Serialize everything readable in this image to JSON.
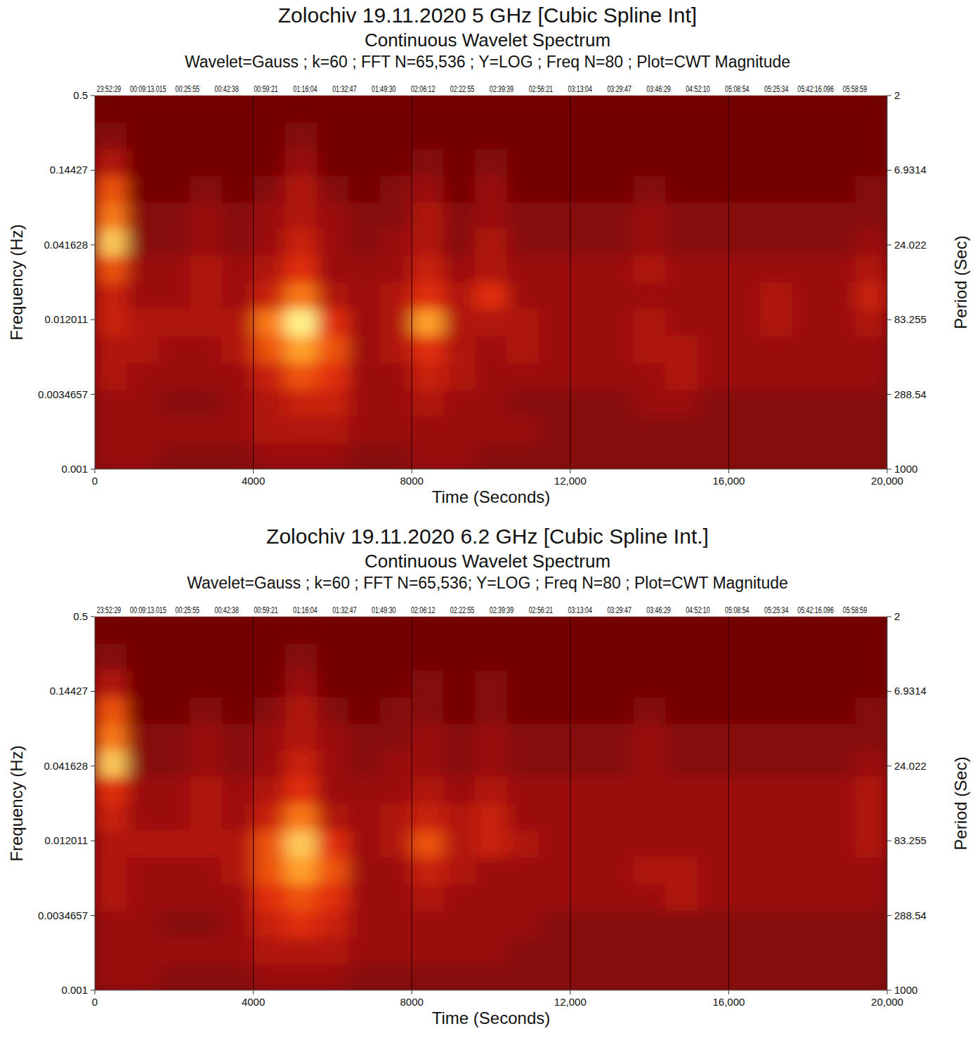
{
  "chart_data": [
    {
      "type": "heatmap",
      "title": "Zolochiv 19.11.2020 5 GHz [Cubic Spline Int]",
      "subtitle": "Continuous Wavelet Spectrum",
      "parameters": "Wavelet=Gauss ; k=60 ; FFT N=65,536 ; Y=LOG ; Freq N=80 ; Plot=CWT Magnitude",
      "xlabel": "Time (Seconds)",
      "ylabel": "Frequency (Hz)",
      "y2label": "Period (Sec)",
      "log": "y",
      "grid": true,
      "xlim": [
        0,
        20000
      ],
      "xticks": [
        0,
        4000,
        8000,
        {
          "value": 12000,
          "label": "12,000"
        },
        {
          "value": 16000,
          "label": "16,000"
        },
        {
          "value": 20000,
          "label": "20,000"
        }
      ],
      "ylim": [
        0.001,
        0.5
      ],
      "yticks": [
        0.001,
        0.0034657,
        0.012011,
        0.041628,
        0.14427,
        0.5
      ],
      "y2lim": [
        2,
        1000
      ],
      "y2ticks": [
        2,
        6.9314,
        24.022,
        83.255,
        288.54,
        1000
      ],
      "annotations": [
        {
          "x": 355,
          "text": "23:52:29"
        },
        {
          "x": 1346,
          "text": "00:09:13.015"
        },
        {
          "x": 2337,
          "text": "00:25:55"
        },
        {
          "x": 3328,
          "text": "00:42:38"
        },
        {
          "x": 4319,
          "text": "00:59:21"
        },
        {
          "x": 5310,
          "text": "01:16:04"
        },
        {
          "x": 6301,
          "text": "01:32:47"
        },
        {
          "x": 7292,
          "text": "01:49:30"
        },
        {
          "x": 8283,
          "text": "02:06:12"
        },
        {
          "x": 9274,
          "text": "02:22:55"
        },
        {
          "x": 10265,
          "text": "02:39:39"
        },
        {
          "x": 11256,
          "text": "02:56:21"
        },
        {
          "x": 12247,
          "text": "03:13:04"
        },
        {
          "x": 13238,
          "text": "03:29:47"
        },
        {
          "x": 14229,
          "text": "03:46:29"
        },
        {
          "x": 15220,
          "text": "04:52:10"
        },
        {
          "x": 16211,
          "text": "05:08:54"
        },
        {
          "x": 17202,
          "text": "05:25:34"
        },
        {
          "x": 18193,
          "text": "05:42:16.096"
        },
        {
          "x": 19184,
          "text": "05:58:59"
        }
      ],
      "zlim": [
        0,
        10
      ],
      "x_edges": [
        0,
        800,
        1600,
        2400,
        3200,
        4000,
        4800,
        5600,
        6400,
        7200,
        8000,
        8800,
        9600,
        10400,
        11200,
        12000,
        12800,
        13600,
        14400,
        15200,
        16000,
        16800,
        17600,
        18400,
        19200,
        20000
      ],
      "y_edges": [
        0.001,
        0.00156,
        0.00243,
        0.00379,
        0.0059,
        0.0092,
        0.01435,
        0.02237,
        0.03487,
        0.05436,
        0.0847,
        0.132,
        0.2058,
        0.3208,
        0.5
      ],
      "cells": [
        [
          2,
          2,
          1,
          1,
          1,
          2,
          2,
          2,
          1,
          1,
          2,
          2,
          1,
          1,
          1,
          1,
          1,
          1,
          1,
          1,
          1,
          1,
          1,
          1,
          1
        ],
        [
          2,
          2,
          2,
          2,
          2,
          3,
          3,
          3,
          2,
          2,
          2,
          2,
          2,
          2,
          1,
          1,
          1,
          1,
          1,
          1,
          1,
          1,
          1,
          1,
          1
        ],
        [
          2,
          2,
          1,
          1,
          2,
          3,
          4,
          4,
          2,
          2,
          3,
          2,
          2,
          1,
          1,
          1,
          1,
          2,
          2,
          1,
          1,
          1,
          1,
          1,
          1
        ],
        [
          3,
          2,
          2,
          2,
          2,
          4,
          6,
          5,
          2,
          2,
          4,
          3,
          2,
          2,
          2,
          2,
          2,
          2,
          3,
          2,
          2,
          2,
          2,
          2,
          2
        ],
        [
          3,
          3,
          2,
          2,
          3,
          6,
          8,
          6,
          2,
          3,
          5,
          3,
          2,
          3,
          2,
          2,
          2,
          3,
          3,
          2,
          2,
          2,
          2,
          2,
          2
        ],
        [
          4,
          3,
          3,
          3,
          3,
          7,
          10,
          5,
          2,
          3,
          8,
          3,
          3,
          3,
          2,
          2,
          2,
          3,
          2,
          2,
          2,
          3,
          2,
          2,
          3
        ],
        [
          4,
          2,
          2,
          3,
          2,
          4,
          7,
          3,
          2,
          3,
          5,
          3,
          5,
          2,
          2,
          2,
          2,
          2,
          2,
          2,
          2,
          3,
          2,
          2,
          4
        ],
        [
          6,
          2,
          2,
          3,
          2,
          3,
          5,
          2,
          2,
          2,
          4,
          2,
          3,
          2,
          2,
          2,
          2,
          3,
          2,
          2,
          2,
          2,
          2,
          2,
          3
        ],
        [
          9,
          1,
          1,
          2,
          1,
          2,
          4,
          2,
          1,
          2,
          3,
          1,
          3,
          1,
          1,
          1,
          1,
          2,
          1,
          1,
          1,
          1,
          1,
          1,
          2
        ],
        [
          7,
          1,
          1,
          2,
          1,
          2,
          3,
          2,
          1,
          1,
          3,
          1,
          2,
          1,
          1,
          1,
          1,
          2,
          1,
          1,
          1,
          1,
          1,
          1,
          1
        ],
        [
          6,
          0,
          0,
          1,
          0,
          1,
          3,
          1,
          0,
          1,
          2,
          0,
          2,
          0,
          0,
          0,
          0,
          1,
          0,
          0,
          0,
          0,
          0,
          0,
          1
        ],
        [
          3,
          0,
          0,
          0,
          0,
          0,
          2,
          0,
          0,
          0,
          1,
          0,
          1,
          0,
          0,
          0,
          0,
          0,
          0,
          0,
          0,
          0,
          0,
          0,
          0
        ],
        [
          1,
          0,
          0,
          0,
          0,
          0,
          1,
          0,
          0,
          0,
          0,
          0,
          0,
          0,
          0,
          0,
          0,
          0,
          0,
          0,
          0,
          0,
          0,
          0,
          0
        ],
        [
          0,
          0,
          0,
          0,
          0,
          0,
          0,
          0,
          0,
          0,
          0,
          0,
          0,
          0,
          0,
          0,
          0,
          0,
          0,
          0,
          0,
          0,
          0,
          0,
          0
        ]
      ]
    },
    {
      "type": "heatmap",
      "title": "Zolochiv 19.11.2020 6.2 GHz [Cubic Spline Int.]",
      "subtitle": "Continuous Wavelet Spectrum",
      "parameters": "Wavelet=Gauss ; k=60 ; FFT N=65,536; Y=LOG ; Freq N=80 ; Plot=CWT Magnitude",
      "xlabel": "Time (Seconds)",
      "ylabel": "Frequency (Hz)",
      "y2label": "Period (Sec)",
      "log": "y",
      "grid": true,
      "xlim": [
        0,
        20000
      ],
      "xticks": [
        0,
        4000,
        8000,
        {
          "value": 12000,
          "label": "12,000"
        },
        {
          "value": 16000,
          "label": "16,000"
        },
        {
          "value": 20000,
          "label": "20,000"
        }
      ],
      "ylim": [
        0.001,
        0.5
      ],
      "yticks": [
        0.001,
        0.0034657,
        0.012011,
        0.041628,
        0.14427,
        0.5
      ],
      "y2lim": [
        2,
        1000
      ],
      "y2ticks": [
        2,
        6.9314,
        24.022,
        83.255,
        288.54,
        1000
      ],
      "annotations": [
        {
          "x": 355,
          "text": "23:52:29"
        },
        {
          "x": 1346,
          "text": "00:09:13.015"
        },
        {
          "x": 2337,
          "text": "00:25:55"
        },
        {
          "x": 3328,
          "text": "00:42:38"
        },
        {
          "x": 4319,
          "text": "00:59:21"
        },
        {
          "x": 5310,
          "text": "01:16:04"
        },
        {
          "x": 6301,
          "text": "01:32:47"
        },
        {
          "x": 7292,
          "text": "01:49:30"
        },
        {
          "x": 8283,
          "text": "02:06:12"
        },
        {
          "x": 9274,
          "text": "02:22:55"
        },
        {
          "x": 10265,
          "text": "02:39:39"
        },
        {
          "x": 11256,
          "text": "02:56:21"
        },
        {
          "x": 12247,
          "text": "03:13:04"
        },
        {
          "x": 13238,
          "text": "03:29:47"
        },
        {
          "x": 14229,
          "text": "03:46:29"
        },
        {
          "x": 15220,
          "text": "04:52:10"
        },
        {
          "x": 16211,
          "text": "05:08:54"
        },
        {
          "x": 17202,
          "text": "05:25:34"
        },
        {
          "x": 18193,
          "text": "05:42:16.096"
        },
        {
          "x": 19184,
          "text": "05:58:59"
        }
      ],
      "zlim": [
        0,
        10
      ],
      "x_edges": [
        0,
        800,
        1600,
        2400,
        3200,
        4000,
        4800,
        5600,
        6400,
        7200,
        8000,
        8800,
        9600,
        10400,
        11200,
        12000,
        12800,
        13600,
        14400,
        15200,
        16000,
        16800,
        17600,
        18400,
        19200,
        20000
      ],
      "y_edges": [
        0.001,
        0.00156,
        0.00243,
        0.00379,
        0.0059,
        0.0092,
        0.01435,
        0.02237,
        0.03487,
        0.05436,
        0.0847,
        0.132,
        0.2058,
        0.3208,
        0.5
      ],
      "cells": [
        [
          2,
          2,
          1,
          1,
          1,
          2,
          2,
          2,
          1,
          1,
          1,
          1,
          1,
          1,
          1,
          1,
          1,
          1,
          1,
          1,
          1,
          1,
          1,
          1,
          1
        ],
        [
          2,
          2,
          2,
          2,
          2,
          3,
          3,
          3,
          2,
          2,
          2,
          2,
          2,
          1,
          1,
          1,
          1,
          1,
          1,
          1,
          1,
          1,
          1,
          1,
          1
        ],
        [
          2,
          2,
          1,
          1,
          2,
          4,
          5,
          4,
          2,
          2,
          2,
          2,
          2,
          2,
          1,
          1,
          1,
          1,
          1,
          1,
          1,
          1,
          1,
          1,
          1
        ],
        [
          3,
          2,
          2,
          2,
          2,
          5,
          6,
          5,
          2,
          2,
          3,
          2,
          2,
          2,
          2,
          2,
          2,
          2,
          3,
          2,
          2,
          2,
          2,
          2,
          2
        ],
        [
          3,
          2,
          2,
          2,
          3,
          6,
          8,
          6,
          2,
          2,
          4,
          3,
          2,
          2,
          2,
          2,
          2,
          3,
          3,
          2,
          2,
          2,
          2,
          2,
          2
        ],
        [
          3,
          3,
          3,
          3,
          3,
          6,
          9,
          5,
          2,
          3,
          6,
          3,
          4,
          3,
          2,
          2,
          2,
          2,
          2,
          2,
          2,
          2,
          2,
          2,
          3
        ],
        [
          4,
          2,
          2,
          3,
          2,
          4,
          7,
          3,
          2,
          3,
          4,
          3,
          4,
          2,
          2,
          2,
          2,
          2,
          2,
          2,
          2,
          2,
          2,
          2,
          3
        ],
        [
          5,
          2,
          2,
          3,
          2,
          3,
          5,
          2,
          2,
          2,
          3,
          2,
          3,
          2,
          2,
          2,
          2,
          2,
          2,
          2,
          2,
          2,
          2,
          2,
          3
        ],
        [
          9,
          1,
          1,
          2,
          1,
          2,
          4,
          2,
          1,
          2,
          2,
          1,
          2,
          1,
          1,
          1,
          1,
          2,
          1,
          1,
          1,
          1,
          1,
          1,
          2
        ],
        [
          7,
          1,
          1,
          2,
          1,
          2,
          3,
          2,
          1,
          1,
          2,
          1,
          2,
          1,
          1,
          1,
          1,
          2,
          1,
          1,
          1,
          1,
          1,
          1,
          1
        ],
        [
          6,
          0,
          0,
          1,
          0,
          1,
          3,
          1,
          0,
          1,
          1,
          0,
          1,
          0,
          0,
          0,
          0,
          1,
          0,
          0,
          0,
          0,
          0,
          0,
          1
        ],
        [
          3,
          0,
          0,
          0,
          0,
          0,
          2,
          0,
          0,
          0,
          1,
          0,
          1,
          0,
          0,
          0,
          0,
          0,
          0,
          0,
          0,
          0,
          0,
          0,
          0
        ],
        [
          1,
          0,
          0,
          0,
          0,
          0,
          1,
          0,
          0,
          0,
          0,
          0,
          0,
          0,
          0,
          0,
          0,
          0,
          0,
          0,
          0,
          0,
          0,
          0,
          0
        ],
        [
          0,
          0,
          0,
          0,
          0,
          0,
          0,
          0,
          0,
          0,
          0,
          0,
          0,
          0,
          0,
          0,
          0,
          0,
          0,
          0,
          0,
          0,
          0,
          0,
          0
        ]
      ]
    }
  ]
}
